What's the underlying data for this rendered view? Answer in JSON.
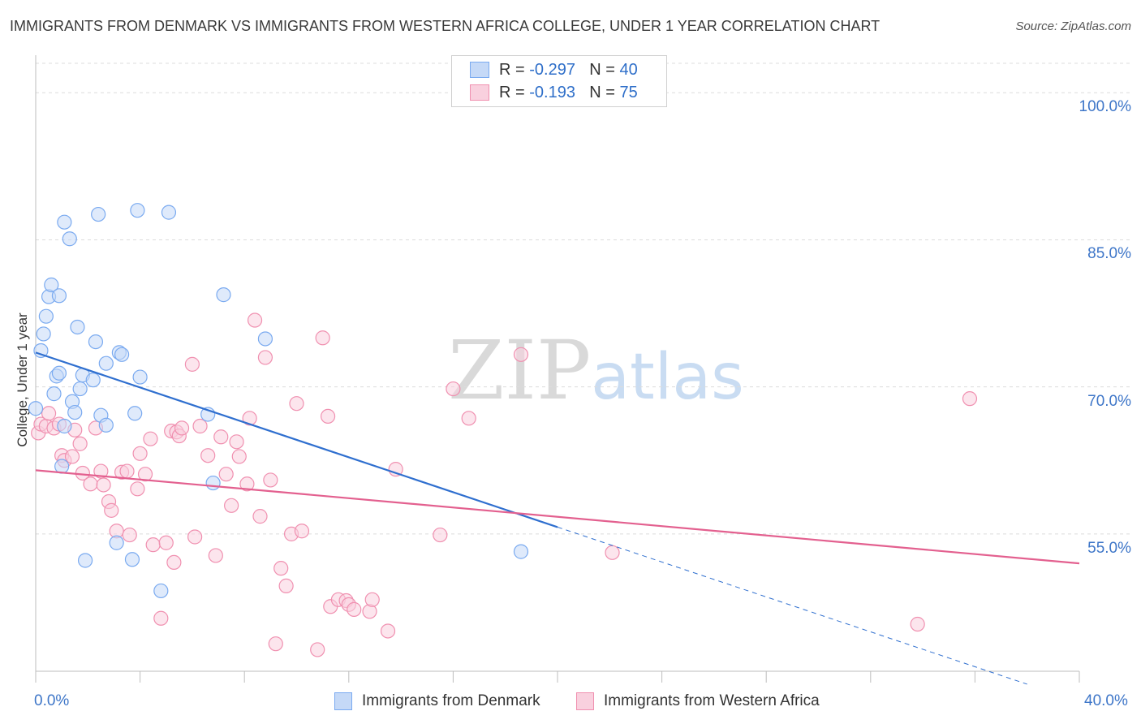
{
  "title": "IMMIGRANTS FROM DENMARK VS IMMIGRANTS FROM WESTERN AFRICA COLLEGE, UNDER 1 YEAR CORRELATION CHART",
  "source": "Source: ZipAtlas.com",
  "watermark": {
    "zip": "ZIP",
    "atlas": "atlas"
  },
  "legend": {
    "rows": [
      {
        "r_label": "R =",
        "r_value": "-0.297",
        "n_label": "N =",
        "n_value": "40"
      },
      {
        "r_label": "R =",
        "r_value": "-0.193",
        "n_label": "N =",
        "n_value": "75"
      }
    ]
  },
  "colors": {
    "denmark": "#7aaaf0",
    "denmark_fill": "#c5d9f7",
    "denmark_line": "#2f6fcf",
    "wafrica": "#f090b0",
    "wafrica_fill": "#f9d0de",
    "wafrica_line": "#e3608f",
    "tick": "#3e76c8"
  },
  "chart_data": {
    "type": "scatter",
    "title": "IMMIGRANTS FROM DENMARK VS IMMIGRANTS FROM WESTERN AFRICA COLLEGE, UNDER 1 YEAR CORRELATION CHART",
    "xlabel": "",
    "ylabel": "College, Under 1 year",
    "xlim": [
      0,
      40
    ],
    "ylim": [
      41,
      103
    ],
    "x_tick_labels": [
      "0.0%",
      "40.0%"
    ],
    "y_ticks": [
      55,
      70,
      85,
      100
    ],
    "y_tick_labels": [
      "55.0%",
      "70.0%",
      "85.0%",
      "100.0%"
    ],
    "series": [
      {
        "name": "Immigrants from Denmark",
        "r": -0.297,
        "n": 40,
        "trend": {
          "x0": 0,
          "y0": 73.5,
          "x1": 20,
          "y1": 55.7,
          "dash_to_x": 38.0
        },
        "points": [
          [
            0.0,
            67.8
          ],
          [
            0.2,
            73.7
          ],
          [
            0.3,
            75.4
          ],
          [
            0.4,
            77.2
          ],
          [
            0.5,
            79.2
          ],
          [
            0.6,
            80.4
          ],
          [
            0.7,
            69.3
          ],
          [
            0.8,
            71.1
          ],
          [
            0.9,
            71.4
          ],
          [
            0.9,
            79.3
          ],
          [
            1.0,
            61.9
          ],
          [
            1.1,
            66.0
          ],
          [
            1.1,
            86.8
          ],
          [
            1.3,
            85.1
          ],
          [
            1.4,
            68.5
          ],
          [
            1.5,
            67.4
          ],
          [
            1.6,
            76.1
          ],
          [
            1.7,
            69.8
          ],
          [
            1.8,
            71.2
          ],
          [
            1.9,
            52.3
          ],
          [
            2.2,
            70.7
          ],
          [
            2.3,
            74.6
          ],
          [
            2.4,
            87.6
          ],
          [
            2.5,
            67.1
          ],
          [
            2.7,
            66.1
          ],
          [
            2.7,
            72.4
          ],
          [
            3.1,
            54.1
          ],
          [
            3.2,
            73.5
          ],
          [
            3.3,
            73.3
          ],
          [
            3.7,
            52.4
          ],
          [
            3.8,
            67.3
          ],
          [
            3.9,
            88.0
          ],
          [
            4.0,
            71.0
          ],
          [
            4.8,
            49.2
          ],
          [
            5.1,
            87.8
          ],
          [
            6.6,
            67.2
          ],
          [
            6.8,
            60.2
          ],
          [
            7.2,
            79.4
          ],
          [
            8.8,
            74.9
          ],
          [
            18.6,
            53.2
          ]
        ]
      },
      {
        "name": "Immigrants from Western Africa",
        "r": -0.193,
        "n": 75,
        "trend": {
          "x0": 0,
          "y0": 61.5,
          "x1": 40,
          "y1": 52.0
        },
        "points": [
          [
            0.1,
            65.3
          ],
          [
            0.2,
            66.2
          ],
          [
            0.4,
            66.0
          ],
          [
            0.5,
            67.3
          ],
          [
            0.7,
            65.8
          ],
          [
            0.9,
            66.2
          ],
          [
            1.0,
            63.0
          ],
          [
            1.1,
            62.5
          ],
          [
            1.4,
            62.9
          ],
          [
            1.5,
            65.6
          ],
          [
            1.7,
            64.2
          ],
          [
            1.8,
            61.2
          ],
          [
            2.1,
            60.1
          ],
          [
            2.3,
            65.8
          ],
          [
            2.5,
            61.4
          ],
          [
            2.6,
            60.0
          ],
          [
            2.8,
            58.3
          ],
          [
            2.9,
            57.4
          ],
          [
            3.1,
            55.3
          ],
          [
            3.3,
            61.3
          ],
          [
            3.5,
            61.4
          ],
          [
            3.6,
            54.9
          ],
          [
            3.9,
            59.6
          ],
          [
            4.0,
            63.2
          ],
          [
            4.2,
            61.1
          ],
          [
            4.4,
            64.7
          ],
          [
            4.5,
            53.9
          ],
          [
            4.8,
            46.4
          ],
          [
            5.0,
            54.1
          ],
          [
            5.2,
            65.5
          ],
          [
            5.3,
            52.1
          ],
          [
            5.4,
            65.4
          ],
          [
            5.5,
            65.0
          ],
          [
            5.6,
            65.8
          ],
          [
            6.0,
            72.3
          ],
          [
            6.1,
            54.7
          ],
          [
            6.3,
            66.0
          ],
          [
            6.6,
            63.0
          ],
          [
            6.9,
            52.8
          ],
          [
            7.1,
            64.9
          ],
          [
            7.3,
            61.1
          ],
          [
            7.5,
            57.9
          ],
          [
            7.7,
            64.4
          ],
          [
            7.8,
            62.9
          ],
          [
            8.1,
            60.1
          ],
          [
            8.2,
            66.8
          ],
          [
            8.4,
            76.8
          ],
          [
            8.6,
            56.8
          ],
          [
            8.8,
            73.0
          ],
          [
            9.0,
            60.5
          ],
          [
            9.2,
            43.8
          ],
          [
            9.4,
            51.5
          ],
          [
            9.6,
            49.7
          ],
          [
            9.8,
            55.0
          ],
          [
            10.0,
            68.3
          ],
          [
            10.2,
            55.3
          ],
          [
            10.8,
            43.2
          ],
          [
            11.0,
            75.0
          ],
          [
            11.2,
            67.0
          ],
          [
            11.3,
            47.6
          ],
          [
            11.6,
            48.3
          ],
          [
            11.9,
            48.2
          ],
          [
            12.0,
            47.8
          ],
          [
            12.2,
            47.3
          ],
          [
            12.8,
            47.1
          ],
          [
            12.9,
            48.3
          ],
          [
            13.5,
            45.1
          ],
          [
            13.8,
            61.6
          ],
          [
            15.5,
            54.9
          ],
          [
            16.0,
            69.8
          ],
          [
            16.6,
            66.8
          ],
          [
            18.6,
            73.3
          ],
          [
            22.1,
            53.1
          ],
          [
            33.8,
            45.8
          ],
          [
            35.8,
            68.8
          ]
        ]
      }
    ]
  }
}
